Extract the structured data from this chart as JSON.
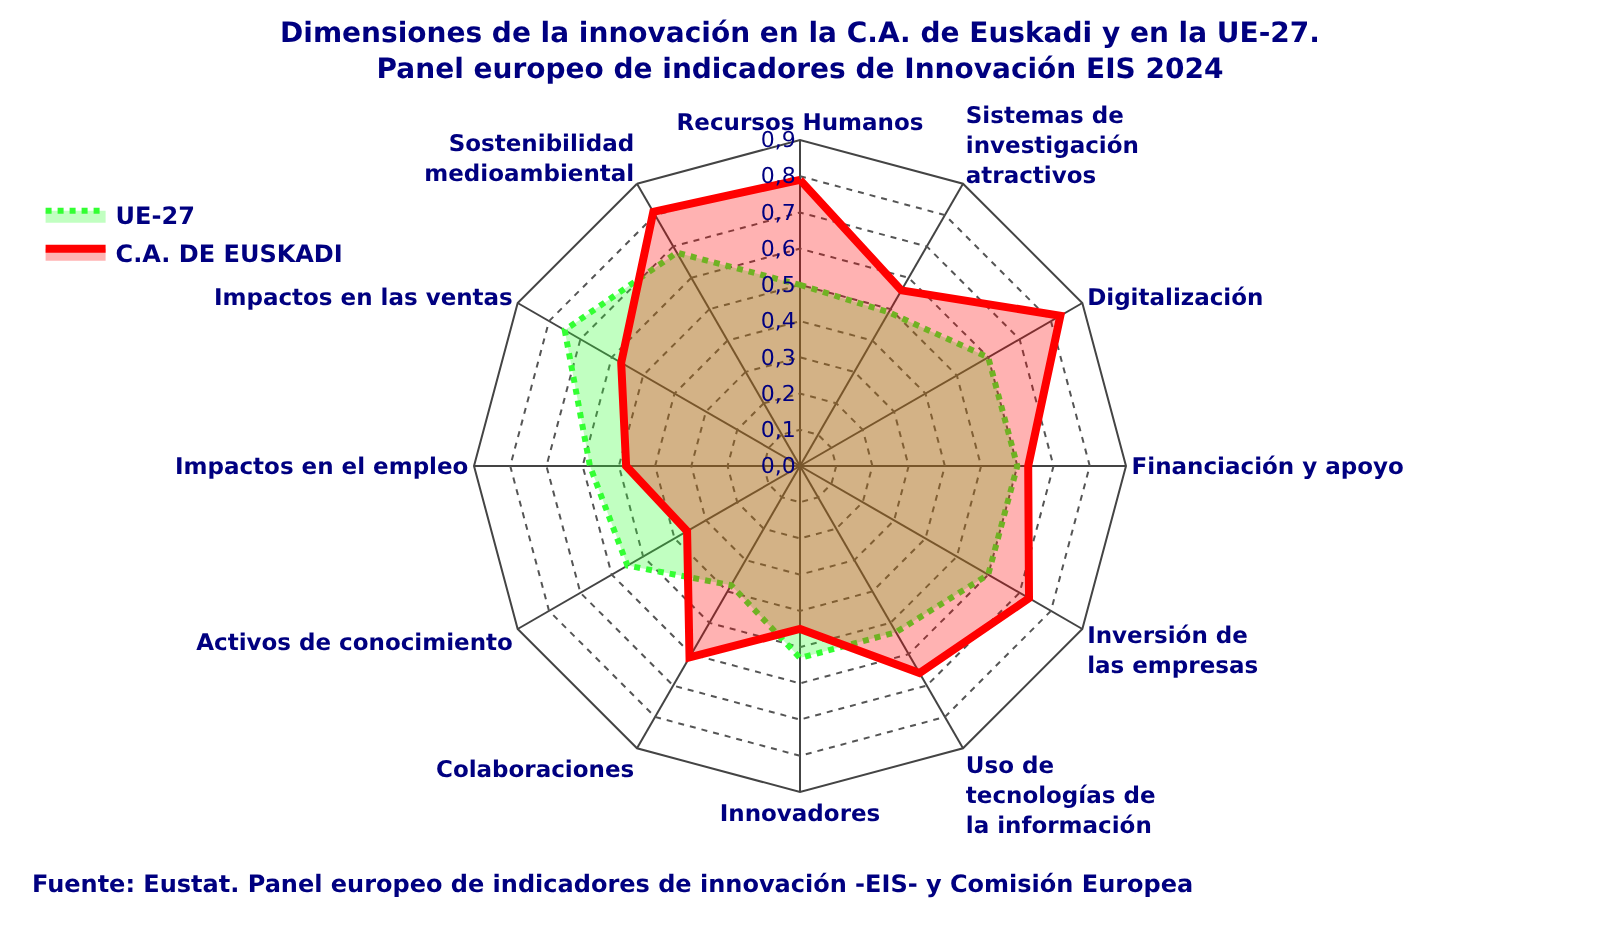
{
  "chart_data": {
    "type": "radar",
    "title": "Dimensiones de la innovación en la C.A. de Euskadi y en la UE-27. Panel europeo de indicadores de Innovación EIS 2024",
    "categories": [
      "Recursos Humanos",
      "Sistemas de investigación atractivos",
      "Digitalización",
      "Financiación y apoyo",
      "Inversión de las empresas",
      "Uso de tecnologías de la información",
      "Innovadores",
      "Colaboraciones",
      "Activos de conocimiento",
      "Impactos en el empleo",
      "Impactos en las ventas",
      "Sostenibilidad medioambiental"
    ],
    "series": [
      {
        "name": "UE-27",
        "color": "#33ff33",
        "line_style": "dotted",
        "values": [
          0.5,
          0.49,
          0.6,
          0.6,
          0.6,
          0.53,
          0.53,
          0.38,
          0.55,
          0.58,
          0.75,
          0.68
        ]
      },
      {
        "name": "C.A. DE EUSKADI",
        "color": "#ff0000",
        "line_style": "solid",
        "values": [
          0.79,
          0.56,
          0.83,
          0.63,
          0.73,
          0.66,
          0.45,
          0.61,
          0.36,
          0.48,
          0.57,
          0.81
        ]
      }
    ],
    "ylim": [
      0,
      0.9
    ],
    "yticks": [
      {
        "value": 0,
        "label": "0,0"
      },
      {
        "value": 0.1,
        "label": "0,1"
      },
      {
        "value": 0.2,
        "label": "0,2"
      },
      {
        "value": 0.3,
        "label": "0,3"
      },
      {
        "value": 0.4,
        "label": "0,4"
      },
      {
        "value": 0.5,
        "label": "0,5"
      },
      {
        "value": 0.6,
        "label": "0,6"
      },
      {
        "value": 0.7,
        "label": "0,7"
      },
      {
        "value": 0.8,
        "label": "0,8"
      },
      {
        "value": 0.9,
        "label": "0,9"
      }
    ],
    "grid": true,
    "legend": "top left",
    "marker": "none",
    "annotations": [
      "Fuente: Eustat. Panel europeo de indicadores de innovación -EIS- y Comisión Europea"
    ]
  }
}
